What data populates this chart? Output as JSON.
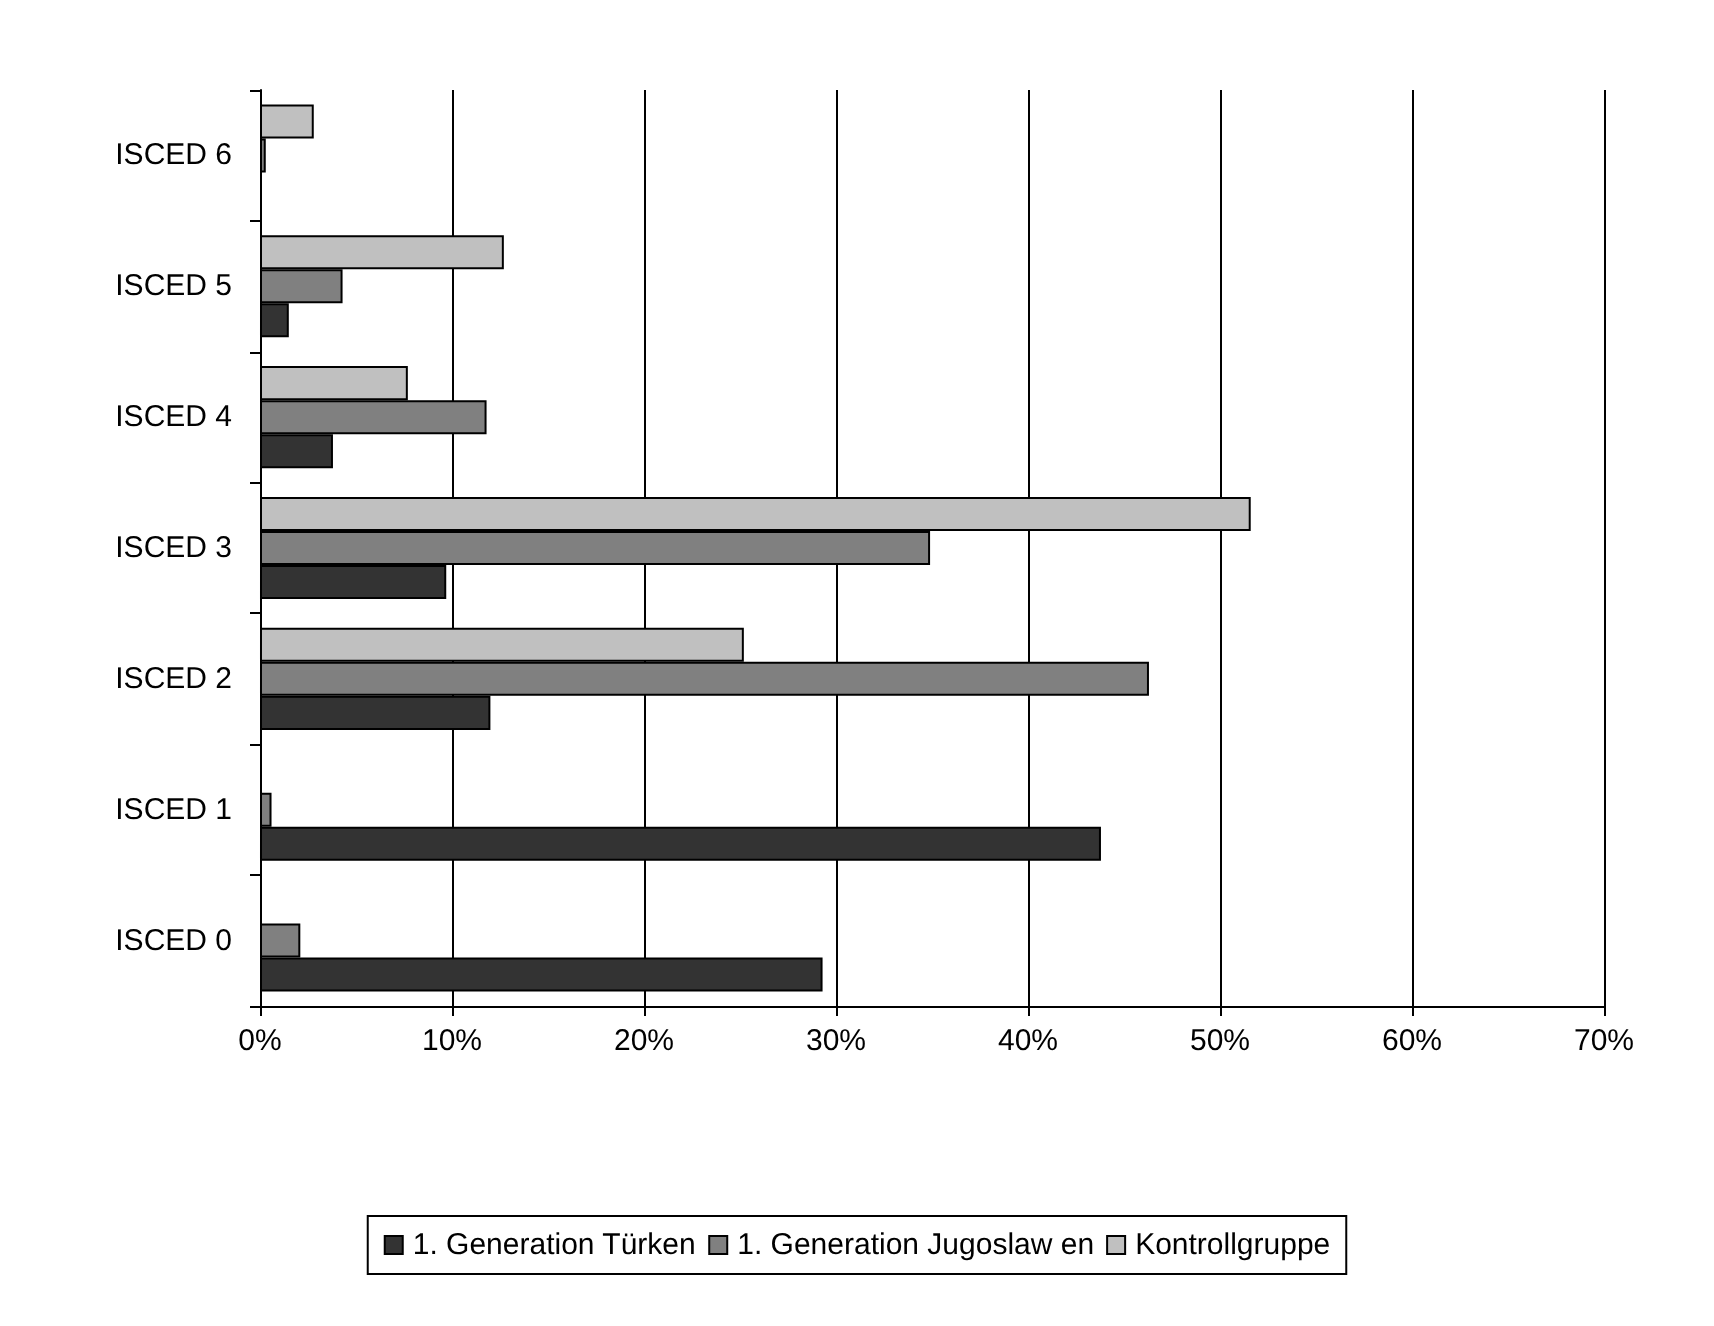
{
  "chart_data": {
    "type": "bar",
    "orientation": "horizontal",
    "categories": [
      "ISCED 6",
      "ISCED 5",
      "ISCED 4",
      "ISCED 3",
      "ISCED 2",
      "ISCED 1",
      "ISCED 0"
    ],
    "series": [
      {
        "name": "1. Generation Türken",
        "color": "#333333",
        "values": [
          0,
          1.5,
          3.8,
          9.7,
          12.0,
          43.8,
          29.3
        ]
      },
      {
        "name": "1. Generation Jugoslaw en",
        "color": "#808080",
        "values": [
          0.3,
          4.3,
          11.8,
          34.9,
          46.3,
          0.6,
          2.1
        ]
      },
      {
        "name": "Kontrollgruppe",
        "color": "#c0c0c0",
        "values": [
          2.8,
          12.7,
          7.7,
          51.6,
          25.2,
          0,
          0
        ]
      }
    ],
    "xlim": [
      0,
      70
    ],
    "xticks": [
      {
        "value": 0,
        "label": "0%"
      },
      {
        "value": 10,
        "label": "10%"
      },
      {
        "value": 20,
        "label": "20%"
      },
      {
        "value": 30,
        "label": "30%"
      },
      {
        "value": 40,
        "label": "40%"
      },
      {
        "value": 50,
        "label": "50%"
      },
      {
        "value": 60,
        "label": "60%"
      },
      {
        "value": 70,
        "label": "70%"
      }
    ],
    "grid": "x",
    "legend": "bottom"
  }
}
